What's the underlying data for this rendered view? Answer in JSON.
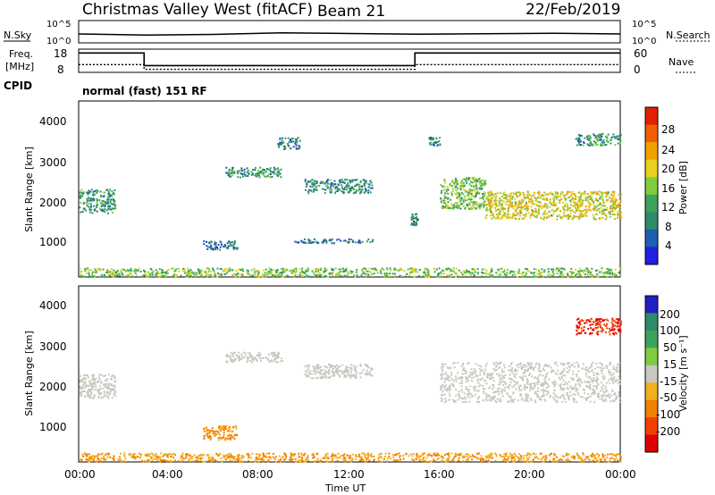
{
  "header": {
    "station": "Christmas Valley West (fitACF)",
    "beam": "Beam 21",
    "date": "22/Feb/2019"
  },
  "noise_panel": {
    "left_label": "N.Sky",
    "right_label": "N.Search",
    "left_ticks": [
      "10^5",
      "10^0"
    ],
    "right_ticks": [
      "10^5",
      "10^0"
    ]
  },
  "freq_panel": {
    "left_label_1": "Freq.",
    "left_label_2": "[MHz]",
    "right_label": "Nave",
    "left_ticks": [
      "18",
      "8"
    ],
    "right_ticks": [
      "60",
      "0"
    ],
    "cpid_label": "CPID",
    "mode_text": "normal (fast) 151 RF"
  },
  "power_panel": {
    "ylabel": "Slant Range [km]",
    "yticks": [
      "4000",
      "3000",
      "2000",
      "1000"
    ],
    "colorbar_label": "Power [dB]",
    "colorbar_ticks": [
      "28",
      "24",
      "20",
      "16",
      "12",
      "8",
      "4"
    ],
    "colors": [
      "#2020e0",
      "#1f5fb0",
      "#2e8b6a",
      "#3aa55a",
      "#7fcc40",
      "#e8d020",
      "#f0a000",
      "#f06000",
      "#e02000"
    ]
  },
  "velocity_panel": {
    "ylabel": "Slant Range [km]",
    "yticks": [
      "4000",
      "3000",
      "2000",
      "1000"
    ],
    "colorbar_label": "Velocity [m s⁻¹]",
    "colorbar_ticks": [
      "200",
      "100",
      "50",
      "15",
      "-15",
      "-50",
      "-100",
      "-200"
    ],
    "colors": [
      "#2020c0",
      "#2e8b6a",
      "#3aa55a",
      "#7fcc40",
      "#c8c8c0",
      "#f0b020",
      "#f08000",
      "#f04000",
      "#e00000"
    ]
  },
  "xaxis": {
    "label": "Time UT",
    "ticks": [
      "00:00",
      "04:00",
      "08:00",
      "12:00",
      "16:00",
      "20:00",
      "00:00"
    ]
  },
  "chart_data": [
    {
      "type": "line",
      "title": "N.Sky / N.Search",
      "x": [
        0,
        3,
        6,
        9,
        12,
        15,
        18,
        21,
        24
      ],
      "series": [
        {
          "name": "N.Sky",
          "values": [
            40,
            35,
            38,
            45,
            42,
            39,
            41,
            43,
            40
          ]
        }
      ]
    },
    {
      "type": "line",
      "title": "Freq. [MHz] / Nave",
      "x": [
        0,
        2.9,
        2.9,
        14.9,
        14.9,
        24
      ],
      "series": [
        {
          "name": "Freq.",
          "values": [
            16,
            16,
            9.5,
            9.5,
            16,
            16
          ]
        },
        {
          "name": "Nave",
          "values": [
            20,
            20,
            8,
            8,
            20,
            20
          ]
        }
      ]
    },
    {
      "type": "heatmap",
      "title": "Power [dB]",
      "xlabel": "Time UT",
      "ylabel": "Slant Range [km]",
      "xlim": [
        0,
        24
      ],
      "ylim": [
        180,
        4600
      ],
      "zlim": [
        0,
        30
      ],
      "regions": [
        {
          "t": [
            0.0,
            1.6
          ],
          "r": [
            1800,
            2400
          ],
          "value": 10
        },
        {
          "t": [
            5.5,
            7.0
          ],
          "r": [
            880,
            1100
          ],
          "value": 6
        },
        {
          "t": [
            6.5,
            9.0
          ],
          "r": [
            2700,
            2950
          ],
          "value": 10
        },
        {
          "t": [
            8.8,
            9.8
          ],
          "r": [
            3400,
            3700
          ],
          "value": 8
        },
        {
          "t": [
            9.5,
            13.0
          ],
          "r": [
            1050,
            1150
          ],
          "value": 7
        },
        {
          "t": [
            10.0,
            13.0
          ],
          "r": [
            2300,
            2650
          ],
          "value": 9
        },
        {
          "t": [
            14.7,
            15.0
          ],
          "r": [
            1500,
            1800
          ],
          "value": 8
        },
        {
          "t": [
            15.5,
            16.0
          ],
          "r": [
            3500,
            3700
          ],
          "value": 8
        },
        {
          "t": [
            16.0,
            18.0
          ],
          "r": [
            1900,
            2700
          ],
          "value": 14
        },
        {
          "t": [
            18.0,
            24.0
          ],
          "r": [
            1650,
            2350
          ],
          "value": 18
        },
        {
          "t": [
            22.0,
            24.0
          ],
          "r": [
            3500,
            3800
          ],
          "value": 10
        },
        {
          "t": [
            0.0,
            24.0
          ],
          "r": [
            200,
            420
          ],
          "value": 14
        }
      ]
    },
    {
      "type": "heatmap",
      "title": "Velocity [m s⁻¹]",
      "xlabel": "Time UT",
      "ylabel": "Slant Range [km]",
      "xlim": [
        0,
        24
      ],
      "ylim": [
        180,
        4600
      ],
      "zlim": [
        -250,
        250
      ],
      "regions": [
        {
          "t": [
            0.0,
            1.6
          ],
          "r": [
            1800,
            2400
          ],
          "value": 0
        },
        {
          "t": [
            5.5,
            7.0
          ],
          "r": [
            750,
            1100
          ],
          "value": -40
        },
        {
          "t": [
            6.5,
            9.0
          ],
          "r": [
            2700,
            2950
          ],
          "value": 0
        },
        {
          "t": [
            10.0,
            13.0
          ],
          "r": [
            2300,
            2650
          ],
          "value": 0
        },
        {
          "t": [
            16.0,
            24.0
          ],
          "r": [
            1700,
            2700
          ],
          "value": 0
        },
        {
          "t": [
            22.0,
            24.0
          ],
          "r": [
            3400,
            3800
          ],
          "value": -150
        },
        {
          "t": [
            0.0,
            24.0
          ],
          "r": [
            200,
            420
          ],
          "value": -30
        }
      ]
    }
  ]
}
